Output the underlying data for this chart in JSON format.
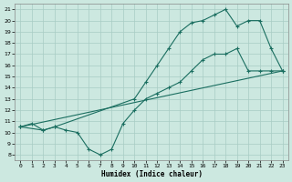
{
  "xlabel": "Humidex (Indice chaleur)",
  "ylabel": "",
  "bg_color": "#cce8e0",
  "line_color": "#1a6e60",
  "xlim": [
    -0.5,
    23.5
  ],
  "ylim": [
    7.5,
    21.5
  ],
  "xticks": [
    0,
    1,
    2,
    3,
    4,
    5,
    6,
    7,
    8,
    9,
    10,
    11,
    12,
    13,
    14,
    15,
    16,
    17,
    18,
    19,
    20,
    21,
    22,
    23
  ],
  "yticks": [
    8,
    9,
    10,
    11,
    12,
    13,
    14,
    15,
    16,
    17,
    18,
    19,
    20,
    21
  ],
  "line1_x": [
    0,
    1,
    2,
    3,
    4,
    5,
    6,
    7,
    8,
    9,
    10,
    11,
    12,
    13,
    14,
    15,
    16,
    17,
    18,
    19,
    20,
    21,
    22,
    23
  ],
  "line1_y": [
    10.5,
    10.8,
    10.2,
    10.5,
    10.2,
    10.0,
    8.5,
    8.0,
    8.5,
    10.8,
    12.0,
    13.0,
    13.5,
    14.0,
    14.5,
    15.5,
    16.5,
    17.0,
    17.0,
    17.5,
    15.5,
    15.5,
    15.5,
    15.5
  ],
  "line2_x": [
    0,
    2,
    3,
    10,
    11,
    12,
    13,
    14,
    15,
    16,
    17,
    18,
    19,
    20,
    21,
    22,
    23
  ],
  "line2_y": [
    10.5,
    10.2,
    10.5,
    13.0,
    14.5,
    16.0,
    17.5,
    19.0,
    19.8,
    20.0,
    20.5,
    21.0,
    19.5,
    20.0,
    20.0,
    17.5,
    15.5
  ],
  "line3_x": [
    0,
    23
  ],
  "line3_y": [
    10.5,
    15.5
  ],
  "grid_color": "#a8ccC4",
  "marker": "+"
}
